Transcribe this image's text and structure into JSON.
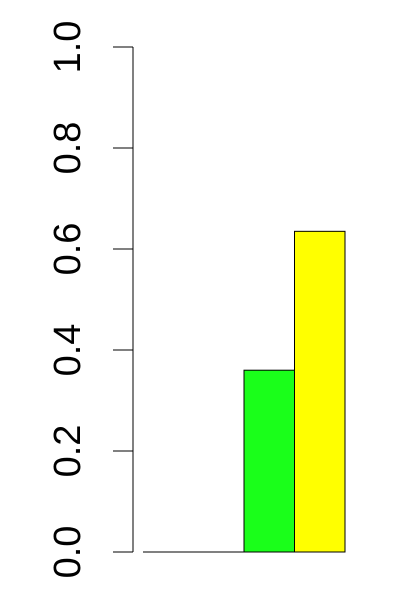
{
  "chart_data": {
    "type": "bar",
    "categories": [
      "",
      "",
      "",
      ""
    ],
    "values": [
      0.0,
      0.0,
      0.36,
      0.635
    ],
    "colors": [
      "#ffffff",
      "#ffffff",
      "#1aff1a",
      "#ffff00"
    ],
    "ylim": [
      0.0,
      1.0
    ],
    "yticks": [
      "0.0",
      "0.2",
      "0.4",
      "0.6",
      "0.8",
      "1.0"
    ],
    "ytick_values": [
      0.0,
      0.2,
      0.4,
      0.6,
      0.8,
      1.0
    ],
    "title": "",
    "xlabel": "",
    "ylabel": "",
    "grid": false,
    "legend": "none"
  }
}
